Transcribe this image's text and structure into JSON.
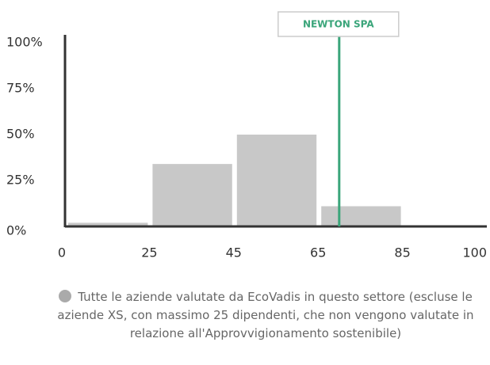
{
  "chart_data": {
    "type": "histogram",
    "bins": [
      0,
      25,
      45,
      65,
      85,
      100
    ],
    "series": [
      {
        "name": "Tutte le aziende valutate da EcoVadis in questo settore (escluse le aziende XS, con massimo 25 dipendenti, che non vengono valutate in relazione all'Approvvigionamento sostenibile)",
        "color": "#c8c8c8",
        "values": [
          2,
          34,
          50,
          11,
          0
        ]
      }
    ],
    "ylim": [
      0,
      100
    ],
    "yticks": [
      {
        "value": 0,
        "label": "0%"
      },
      {
        "value": 25,
        "label": "25%"
      },
      {
        "value": 50,
        "label": "50%"
      },
      {
        "value": 75,
        "label": "75%"
      },
      {
        "value": 100,
        "label": "100%"
      }
    ],
    "xticks": [
      0,
      25,
      45,
      65,
      85,
      100
    ],
    "marker": {
      "label": "NEWTON SPA",
      "x": 70,
      "color": "#3aa57a"
    }
  }
}
